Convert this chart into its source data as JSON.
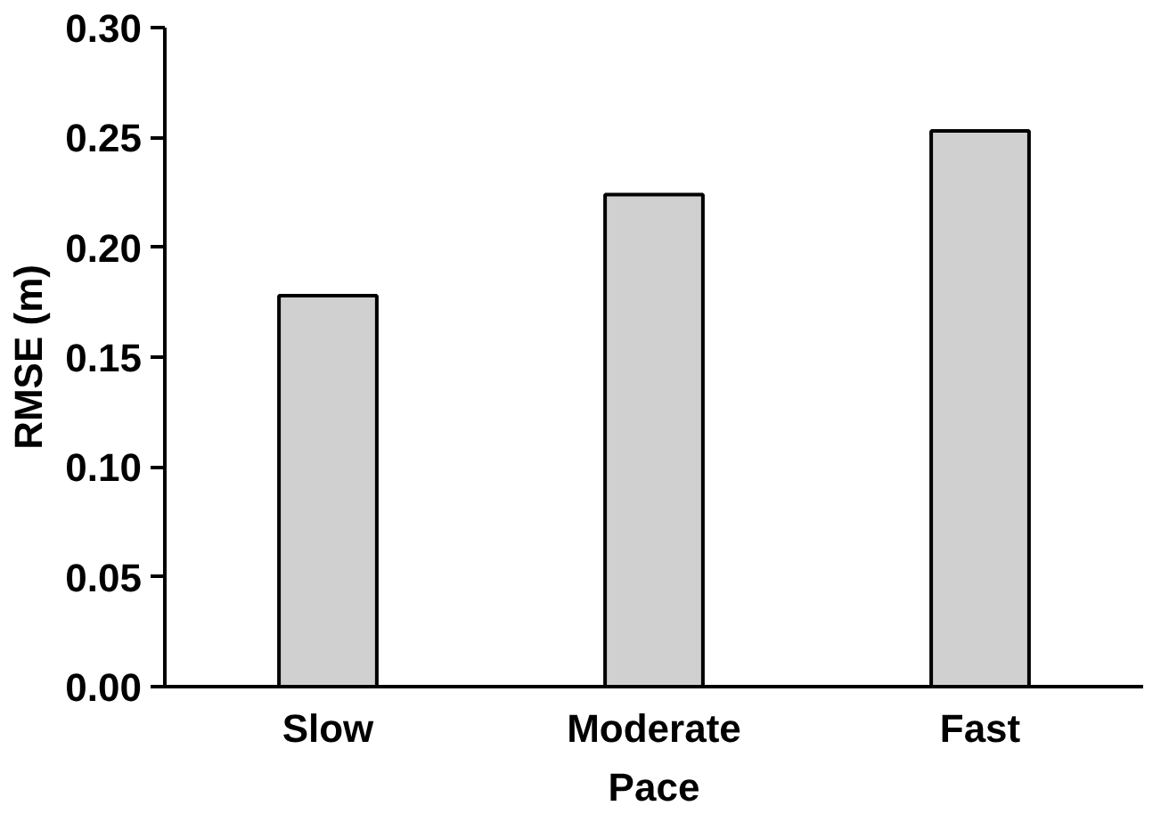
{
  "chart_data": {
    "type": "bar",
    "xlabel": "Pace",
    "ylabel": "RMSE (m)",
    "categories": [
      "Slow",
      "Moderate",
      "Fast"
    ],
    "values": [
      0.178,
      0.224,
      0.253
    ],
    "color": "#d0d0d0",
    "ylim": [
      0,
      0.3
    ],
    "yticks": [
      {
        "value": 0,
        "label": "0.00"
      },
      {
        "value": 0.05,
        "label": "0.05"
      },
      {
        "value": 0.1,
        "label": "0.10"
      },
      {
        "value": 0.15,
        "label": "0.15"
      },
      {
        "value": 0.2,
        "label": "0.20"
      },
      {
        "value": 0.25,
        "label": "0.25"
      },
      {
        "value": 0.3,
        "label": "0.30"
      }
    ],
    "grid": false
  }
}
